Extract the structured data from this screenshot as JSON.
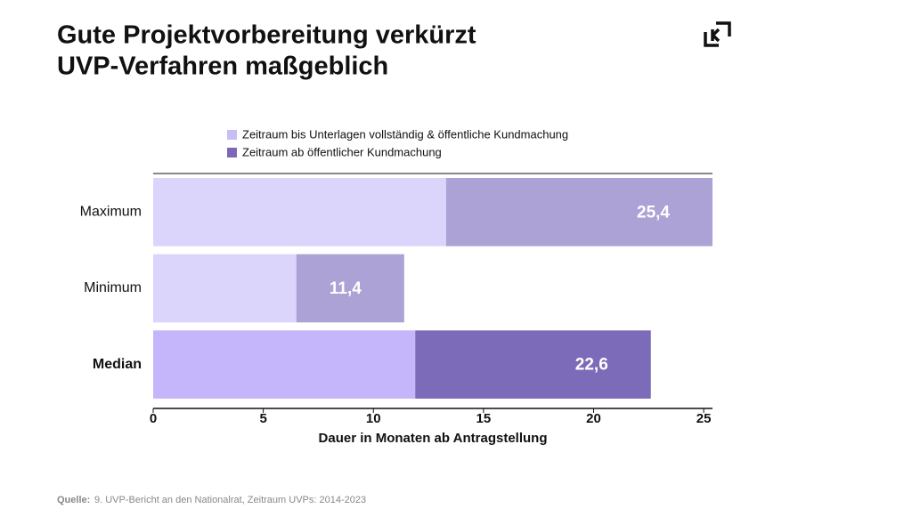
{
  "chart_data": {
    "type": "stacked-barh",
    "title": [
      "Gute Projektvorbereitung verkürzt",
      "UVP-Verfahren maßgeblich"
    ],
    "categories": [
      "Maximum",
      "Minimum",
      "Median"
    ],
    "series": [
      {
        "name": "Zeitraum bis Unterlagen vollständig & öffentliche Kundmachung",
        "color": "#c9bdf6",
        "colors": [
          "#dcd5fb",
          "#dcd5fb",
          "#c5b6fb"
        ],
        "values": [
          13.3,
          6.5,
          11.9
        ]
      },
      {
        "name": "Zeitraum ab öffentlicher Kundmachung",
        "color": "#7b69b8",
        "colors": [
          "#ada2d6",
          "#ada2d6",
          "#7c6bb8"
        ],
        "values": [
          12.1,
          4.9,
          10.7
        ]
      }
    ],
    "totals": [
      25.4,
      11.4,
      22.6
    ],
    "total_labels": [
      "25,4",
      "11,4",
      "22,6"
    ],
    "xlim": [
      0,
      25.4
    ],
    "xticks": [
      0,
      5,
      10,
      15,
      20,
      25
    ],
    "xlabel": "Dauer in Monaten ab Antragstellung",
    "source_label": "Quelle:",
    "source": "9. UVP-Bericht an den Nationalrat, Zeitraum UVPs: 2014-2023"
  }
}
